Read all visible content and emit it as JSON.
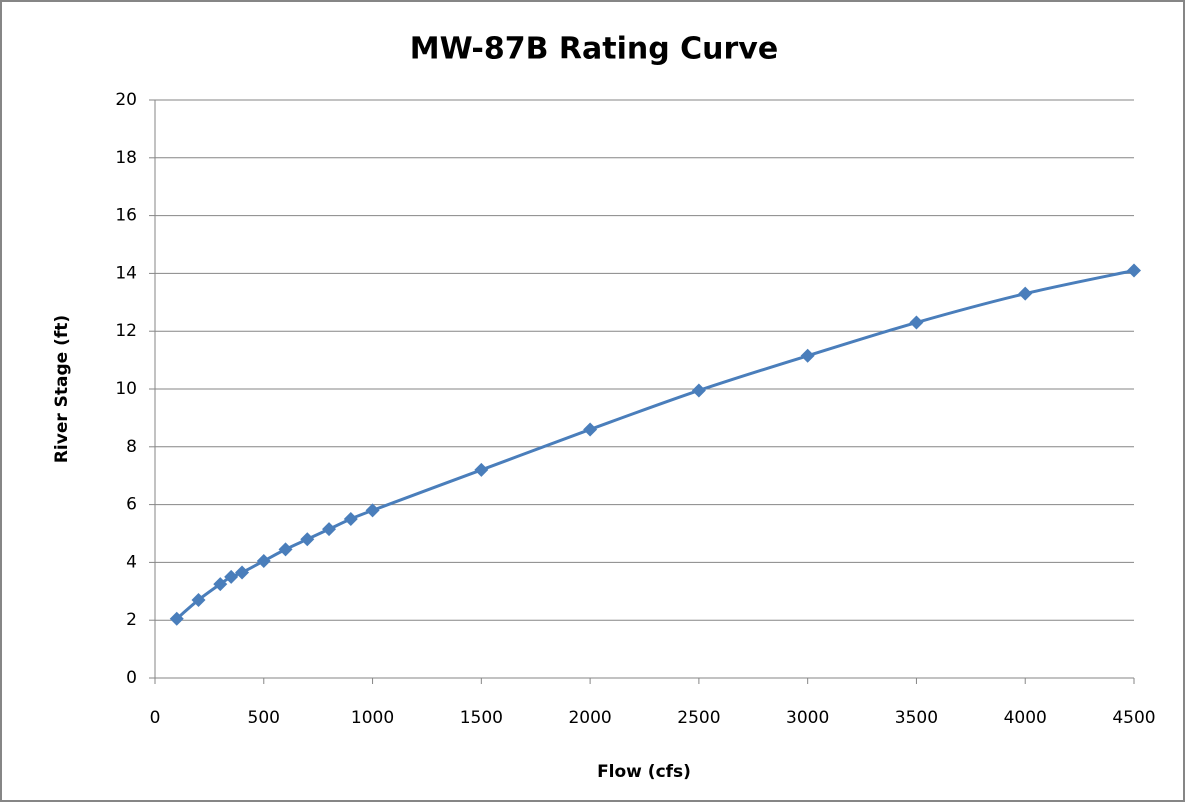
{
  "chart_data": {
    "type": "line",
    "title": "MW-87B Rating Curve",
    "x_label": "Flow (cfs)",
    "y_label": "River Stage  (ft)",
    "x": [
      100,
      200,
      300,
      350,
      400,
      500,
      600,
      700,
      800,
      900,
      1000,
      1500,
      2000,
      2500,
      3000,
      3500,
      4000,
      4500
    ],
    "values": [
      2.05,
      2.7,
      3.25,
      3.5,
      3.65,
      4.05,
      4.45,
      4.8,
      5.15,
      5.5,
      5.8,
      7.2,
      8.6,
      9.95,
      11.15,
      12.3,
      13.3,
      14.1
    ],
    "color": "#4a7ebb",
    "xlim": [
      0,
      4500
    ],
    "xticks": [
      0,
      500,
      1000,
      1500,
      2000,
      2500,
      3000,
      3500,
      4000,
      4500
    ],
    "ylim": [
      0,
      20
    ],
    "yticks": [
      0,
      2,
      4,
      6,
      8,
      10,
      12,
      14,
      16,
      18,
      20
    ],
    "grid": true,
    "markers": "diamond"
  }
}
